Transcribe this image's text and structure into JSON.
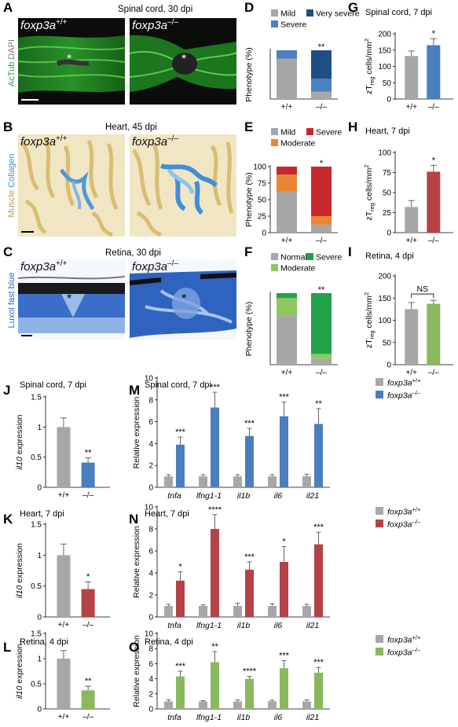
{
  "colors": {
    "grey": "#a7a7a7",
    "blue": "#4d80c0",
    "dark_blue": "#1f4e85",
    "red": "#c7282e",
    "orange": "#e88635",
    "green": "#21a24a",
    "light_green": "#8ec760",
    "dark_red": "#b54247",
    "mid_blue": "#4a7ebd",
    "olive_green": "#8ab85e"
  },
  "panels": {
    "A": {
      "letter": "A",
      "title": "Spinal cord, 30 dpi",
      "side_label_1": "AcTub",
      "side_label_2": "DAPI",
      "img_left": {
        "gene": "foxp3a",
        "sup": "+/+"
      },
      "img_right": {
        "gene": "foxp3a",
        "sup": "–/–"
      },
      "asterisk": "*"
    },
    "B": {
      "letter": "B",
      "title": "Heart, 45 dpi",
      "side_label_1": "Muscle",
      "side_label_2": "Collagen",
      "img_left": {
        "gene": "foxp3a",
        "sup": "+/+"
      },
      "img_right": {
        "gene": "foxp3a",
        "sup": "–/–"
      }
    },
    "C": {
      "letter": "C",
      "title": "Retina, 30 dpi",
      "side_label_1": "Luxol fast blue",
      "img_left": {
        "gene": "foxp3a",
        "sup": "+/+"
      },
      "img_right": {
        "gene": "foxp3a",
        "sup": "–/–"
      },
      "asterisk": "*"
    }
  },
  "chart_data": [
    {
      "id": "D",
      "letter": "D",
      "type": "bar",
      "stacked": true,
      "ylabel": "Phenotype (%)",
      "categories": [
        "+/+",
        "–/–"
      ],
      "sig": [
        "",
        "**"
      ],
      "legend": [
        "Mild",
        "Very severe",
        "Severe"
      ],
      "series": [
        {
          "name": "Mild",
          "values": [
            83,
            15
          ]
        },
        {
          "name": "Severe",
          "values": [
            17,
            27
          ]
        },
        {
          "name": "Very severe",
          "values": [
            0,
            58
          ]
        }
      ]
    },
    {
      "id": "E",
      "letter": "E",
      "type": "bar",
      "stacked": true,
      "ylabel": "Phenotype (%)",
      "categories": [
        "+/+",
        "–/–"
      ],
      "ylim": [
        0,
        100
      ],
      "yticks": [
        "0",
        "25",
        "50",
        "75",
        "100"
      ],
      "sig": [
        "",
        "*"
      ],
      "legend": [
        "Mild",
        "Severe",
        "Moderate"
      ],
      "series": [
        {
          "name": "Mild",
          "values": [
            62,
            12
          ]
        },
        {
          "name": "Moderate",
          "values": [
            26,
            13
          ]
        },
        {
          "name": "Severe",
          "values": [
            12,
            75
          ]
        }
      ]
    },
    {
      "id": "F",
      "letter": "F",
      "type": "bar",
      "stacked": true,
      "ylabel": "Phenotype (%)",
      "categories": [
        "+/+",
        "–/–"
      ],
      "sig": [
        "",
        "**"
      ],
      "legend": [
        "Normal",
        "Severe",
        "Moderate"
      ],
      "series": [
        {
          "name": "Normal",
          "values": [
            68,
            8
          ]
        },
        {
          "name": "Moderate",
          "values": [
            25,
            7
          ]
        },
        {
          "name": "Severe",
          "values": [
            7,
            85
          ]
        }
      ]
    },
    {
      "id": "G",
      "letter": "G",
      "type": "bar",
      "title": "Spinal cord, 7 dpi",
      "ylabel": "zT",
      "ylabel_sub": "reg",
      "ylabel_rest": " cells/mm",
      "ylabel_sup": "2",
      "categories": [
        "+/+",
        "–/–"
      ],
      "values": [
        132,
        165
      ],
      "errors": [
        15,
        20
      ],
      "ylim": [
        0,
        200
      ],
      "yticks": [
        "0",
        "50",
        "100",
        "150",
        "200"
      ],
      "sig": [
        "",
        "*"
      ]
    },
    {
      "id": "H",
      "letter": "H",
      "type": "bar",
      "title": "Heart, 7 dpi",
      "ylabel": "zT",
      "ylabel_sub": "reg",
      "ylabel_rest": " cells/mm",
      "ylabel_sup": "2",
      "categories": [
        "+/+",
        "–/–"
      ],
      "values": [
        32,
        76
      ],
      "errors": [
        8,
        8
      ],
      "ylim": [
        0,
        100
      ],
      "yticks": [
        "0",
        "25",
        "50",
        "75",
        "100"
      ],
      "sig": [
        "",
        "*"
      ]
    },
    {
      "id": "I",
      "letter": "I",
      "type": "bar",
      "title": "Retina, 4 dpi",
      "ylabel": "zT",
      "ylabel_sub": "reg",
      "ylabel_rest": " cells/mm",
      "ylabel_sup": "2",
      "categories": [
        "+/+",
        "–/–"
      ],
      "values": [
        125,
        137
      ],
      "errors": [
        15,
        8
      ],
      "ylim": [
        0,
        200
      ],
      "yticks": [
        "0",
        "50",
        "100",
        "150",
        "200"
      ],
      "bracket_label": "NS"
    },
    {
      "id": "J",
      "letter": "J",
      "type": "bar",
      "title": "Spinal cord, 7 dpi",
      "ylabel": "il10",
      "ylabel_rest": " expression",
      "categories": [
        "+/+",
        "–/–"
      ],
      "values": [
        1.0,
        0.41
      ],
      "errors": [
        0.15,
        0.08
      ],
      "ylim": [
        0,
        1.5
      ],
      "yticks": [
        "0",
        "0.5",
        "1",
        "1.5"
      ],
      "sig": [
        "",
        "**"
      ]
    },
    {
      "id": "K",
      "letter": "K",
      "type": "bar",
      "title": "Heart, 7 dpi",
      "ylabel": "il10",
      "ylabel_rest": " expression",
      "categories": [
        "+/+",
        "–/–"
      ],
      "values": [
        1.0,
        0.45
      ],
      "errors": [
        0.18,
        0.12
      ],
      "ylim": [
        0,
        1.5
      ],
      "yticks": [
        "0",
        "0.5",
        "1",
        "1.5"
      ],
      "sig": [
        "",
        "*"
      ]
    },
    {
      "id": "L",
      "letter": "L",
      "type": "bar",
      "title": "Retina, 4 dpi",
      "ylabel": "il10",
      "ylabel_rest": " expression",
      "categories": [
        "+/+",
        "–/–"
      ],
      "values": [
        1.0,
        0.37
      ],
      "errors": [
        0.16,
        0.08
      ],
      "ylim": [
        0,
        1.5
      ],
      "yticks": [
        "0",
        "0.5",
        "1",
        "1.5"
      ],
      "sig": [
        "",
        "**"
      ]
    },
    {
      "id": "M",
      "letter": "M",
      "type": "bar",
      "title": "Spinal cord, 7 dpi",
      "ylabel": "Relative expression",
      "categories": [
        "tnfa",
        "lfng1-1",
        "il1b",
        "il6",
        "il21"
      ],
      "ylim": [
        0,
        10
      ],
      "yticks": [
        "0",
        "2",
        "4",
        "6",
        "8",
        "10"
      ],
      "legend": [
        {
          "gene": "foxp3a",
          "sup": "+/+"
        },
        {
          "gene": "foxp3a",
          "sup": "–/–"
        }
      ],
      "series": [
        {
          "values": [
            1.0,
            1.0,
            1.0,
            1.0,
            1.0
          ],
          "errors": [
            0.15,
            0.15,
            0.15,
            0.15,
            0.2
          ]
        },
        {
          "values": [
            3.9,
            7.3,
            4.7,
            6.5,
            5.8
          ],
          "errors": [
            0.7,
            1.4,
            0.7,
            1.3,
            1.4
          ]
        }
      ],
      "sig": [
        "***",
        "***",
        "***",
        "***",
        "**"
      ]
    },
    {
      "id": "N",
      "letter": "N",
      "type": "bar",
      "title": "Heart, 7 dpi",
      "ylabel": "Relative expression",
      "categories": [
        "tnfa",
        "lfng1-1",
        "il1b",
        "il6",
        "il21"
      ],
      "ylim": [
        0,
        10
      ],
      "yticks": [
        "0",
        "2",
        "4",
        "6",
        "8",
        "10"
      ],
      "legend": [
        {
          "gene": "foxp3a",
          "sup": "+/+"
        },
        {
          "gene": "foxp3a",
          "sup": "–/–"
        }
      ],
      "series": [
        {
          "values": [
            1.0,
            1.0,
            1.0,
            1.0,
            1.0
          ],
          "errors": [
            0.15,
            0.1,
            0.25,
            0.2,
            0.15
          ]
        },
        {
          "values": [
            3.3,
            8.0,
            4.3,
            5.0,
            6.6
          ],
          "errors": [
            0.8,
            1.3,
            0.7,
            1.4,
            1.1
          ]
        }
      ],
      "sig": [
        "*",
        "****",
        "***",
        "*",
        "***"
      ]
    },
    {
      "id": "O",
      "letter": "O",
      "type": "bar",
      "title": "Retina, 4 dpi",
      "ylabel": "Relative expression",
      "categories": [
        "tnfa",
        "lfng1-1",
        "il1b",
        "il6",
        "il21"
      ],
      "ylim": [
        0,
        10
      ],
      "yticks": [
        "0",
        "2",
        "4",
        "6",
        "8",
        "10"
      ],
      "legend": [
        {
          "gene": "foxp3a",
          "sup": "+/+"
        },
        {
          "gene": "foxp3a",
          "sup": "–/–"
        }
      ],
      "series": [
        {
          "values": [
            1.0,
            1.0,
            1.0,
            1.0,
            1.0
          ],
          "errors": [
            0.2,
            0.1,
            0.2,
            0.15,
            0.2
          ]
        },
        {
          "values": [
            4.3,
            6.2,
            4.0,
            5.4,
            4.8
          ],
          "errors": [
            0.7,
            1.4,
            0.3,
            1.0,
            0.7
          ]
        }
      ],
      "sig": [
        "***",
        "**",
        "****",
        "***",
        "***"
      ]
    }
  ]
}
